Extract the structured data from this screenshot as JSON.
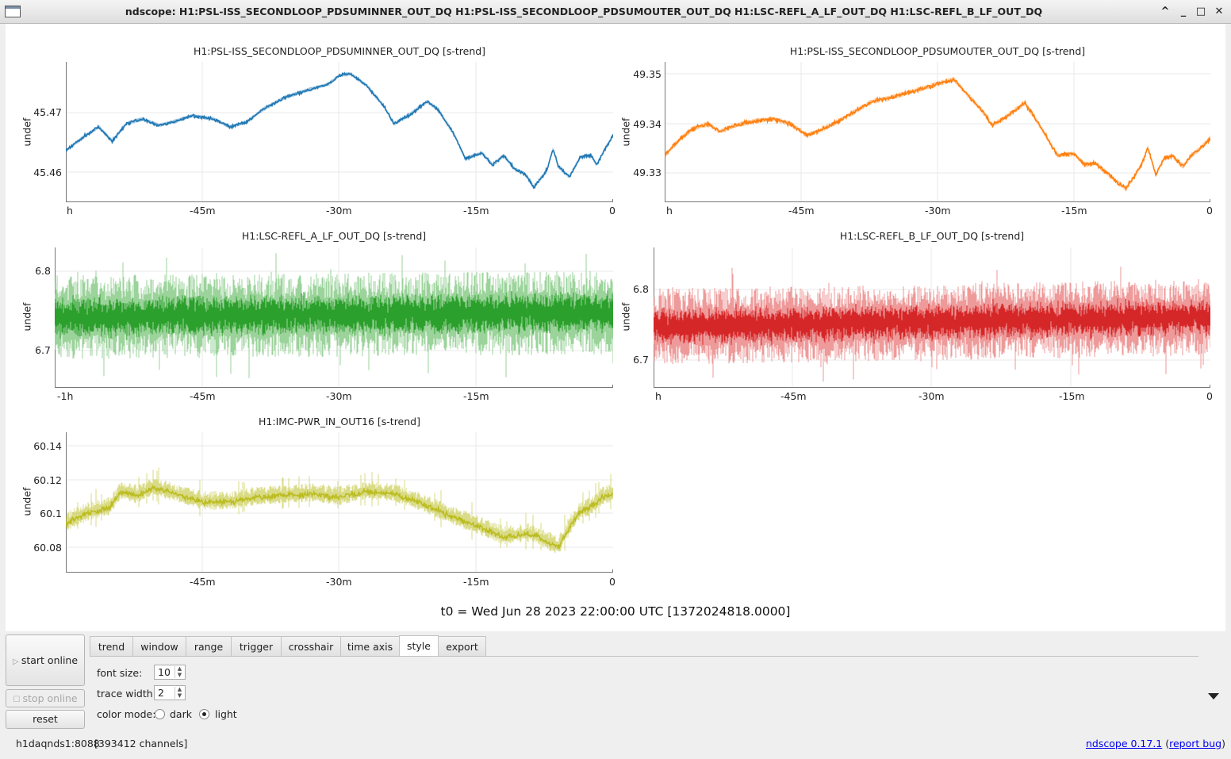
{
  "window": {
    "title": "ndscope: H1:PSL-ISS_SECONDLOOP_PDSUMINNER_OUT_DQ H1:PSL-ISS_SECONDLOOP_PDSUMOUTER_OUT_DQ H1:LSC-REFL_A_LF_OUT_DQ H1:LSC-REFL_B_LF_OUT_DQ",
    "controls": [
      "^",
      "_",
      "□",
      "✕"
    ]
  },
  "plots": [
    {
      "title": "H1:PSL-ISS_SECONDLOOP_PDSUMINNER_OUT_DQ [s-trend]",
      "ylabel": "undef",
      "color": "#1f77b4",
      "yticks": [
        "45.47",
        "45.46"
      ],
      "xticks": [
        "h",
        "-45m",
        "-30m",
        "-15m",
        "0"
      ]
    },
    {
      "title": "H1:PSL-ISS_SECONDLOOP_PDSUMOUTER_OUT_DQ [s-trend]",
      "ylabel": "undef",
      "color": "#ff7f0e",
      "yticks": [
        "49.35",
        "49.34",
        "49.33"
      ],
      "xticks": [
        "h",
        "-45m",
        "-30m",
        "-15m",
        "0"
      ]
    },
    {
      "title": "H1:LSC-REFL_A_LF_OUT_DQ [s-trend]",
      "ylabel": "undef",
      "color": "#2ca02c",
      "yticks": [
        "6.8",
        "6.7"
      ],
      "xticks": [
        "-1h",
        "-45m",
        "-30m",
        "-15m"
      ]
    },
    {
      "title": "H1:LSC-REFL_B_LF_OUT_DQ [s-trend]",
      "ylabel": "undef",
      "color": "#d62728",
      "yticks": [
        "6.8",
        "6.7"
      ],
      "xticks": [
        "h",
        "-45m",
        "-30m",
        "-15m",
        "0"
      ]
    },
    {
      "title": "H1:IMC-PWR_IN_OUT16 [s-trend]",
      "ylabel": "undef",
      "color": "#bcbd22",
      "yticks": [
        "60.14",
        "60.12",
        "60.1",
        "60.08"
      ],
      "xticks": [
        "-45m",
        "-30m",
        "-15m",
        "0"
      ]
    }
  ],
  "t0_label": "t0 = Wed Jun 28 2023 22:00:00 UTC [1372024818.0000]",
  "buttons": {
    "start_online": "start online",
    "stop_online": "stop online",
    "reset": "reset"
  },
  "tabs": [
    "trend",
    "window",
    "range",
    "trigger",
    "crosshair",
    "time axis",
    "style",
    "export"
  ],
  "active_tab": "style",
  "style_tab": {
    "font_size_label": "font size:",
    "font_size_value": "10",
    "trace_width_label": "trace width:",
    "trace_width_value": "2",
    "color_mode_label": "color mode:",
    "color_mode_dark": "dark",
    "color_mode_light": "light",
    "color_mode_selected": "light"
  },
  "status": {
    "server": "h1daqnds1:8088",
    "channels": "[393412 channels]",
    "version": "ndscope 0.17.1",
    "report_bug": "report bug"
  }
}
